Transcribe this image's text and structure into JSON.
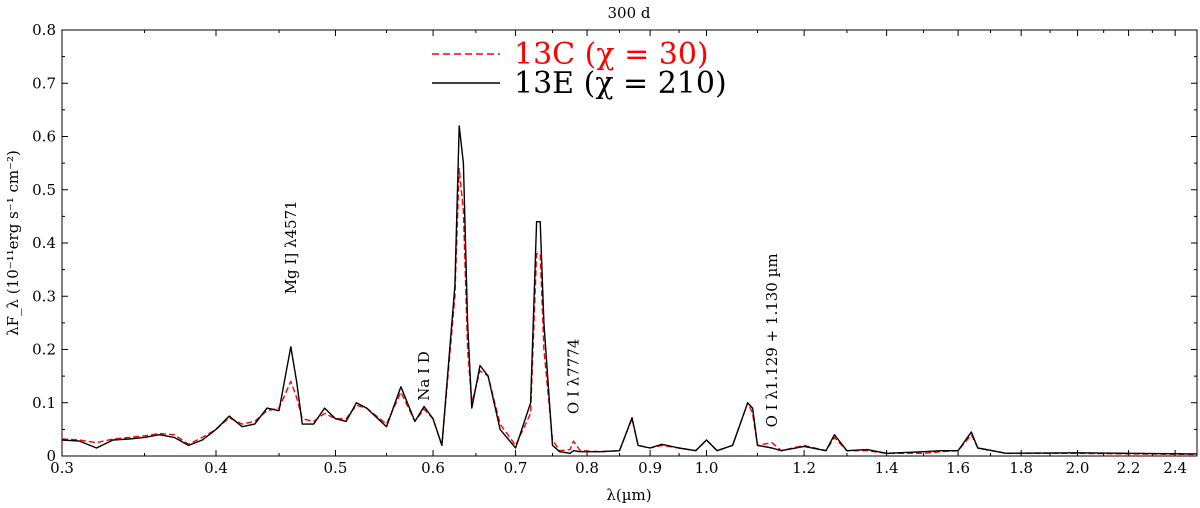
{
  "chart_data": {
    "type": "line",
    "title": "300 d",
    "xlabel": "λ(µm)",
    "ylabel": "λF_λ (10⁻¹¹erg s⁻¹ cm⁻²)",
    "x_scale": "log",
    "xlim": [
      0.3,
      2.5
    ],
    "ylim": [
      0,
      0.8
    ],
    "x_ticks": [
      "0.3",
      "0.4",
      "0.5",
      "0.6",
      "0.7",
      "0.8",
      "0.9",
      "1.0",
      "1.2",
      "1.4",
      "1.6",
      "1.8",
      "2.0",
      "2.2",
      "2.4"
    ],
    "y_ticks": [
      "0",
      "0.1",
      "0.2",
      "0.3",
      "0.4",
      "0.5",
      "0.6",
      "0.7",
      "0.8"
    ],
    "grid": false,
    "legend_placement": "top-center",
    "series": [
      {
        "name": "13C (χ = 30)",
        "color": "#ff0000",
        "style": "dashed",
        "points": [
          [
            0.3,
            0.032
          ],
          [
            0.31,
            0.03
          ],
          [
            0.32,
            0.025
          ],
          [
            0.33,
            0.032
          ],
          [
            0.34,
            0.035
          ],
          [
            0.35,
            0.038
          ],
          [
            0.36,
            0.042
          ],
          [
            0.37,
            0.04
          ],
          [
            0.38,
            0.022
          ],
          [
            0.39,
            0.035
          ],
          [
            0.4,
            0.05
          ],
          [
            0.41,
            0.072
          ],
          [
            0.42,
            0.06
          ],
          [
            0.43,
            0.065
          ],
          [
            0.44,
            0.085
          ],
          [
            0.45,
            0.09
          ],
          [
            0.46,
            0.14
          ],
          [
            0.465,
            0.11
          ],
          [
            0.47,
            0.07
          ],
          [
            0.48,
            0.065
          ],
          [
            0.49,
            0.08
          ],
          [
            0.5,
            0.07
          ],
          [
            0.51,
            0.07
          ],
          [
            0.52,
            0.095
          ],
          [
            0.53,
            0.09
          ],
          [
            0.55,
            0.06
          ],
          [
            0.565,
            0.12
          ],
          [
            0.58,
            0.065
          ],
          [
            0.59,
            0.088
          ],
          [
            0.6,
            0.07
          ],
          [
            0.61,
            0.02
          ],
          [
            0.625,
            0.3
          ],
          [
            0.63,
            0.54
          ],
          [
            0.635,
            0.46
          ],
          [
            0.64,
            0.2
          ],
          [
            0.645,
            0.1
          ],
          [
            0.655,
            0.16
          ],
          [
            0.665,
            0.15
          ],
          [
            0.68,
            0.06
          ],
          [
            0.7,
            0.02
          ],
          [
            0.72,
            0.08
          ],
          [
            0.728,
            0.38
          ],
          [
            0.733,
            0.38
          ],
          [
            0.738,
            0.2
          ],
          [
            0.75,
            0.03
          ],
          [
            0.76,
            0.01
          ],
          [
            0.775,
            0.012
          ],
          [
            0.78,
            0.028
          ],
          [
            0.79,
            0.01
          ],
          [
            0.82,
            0.008
          ],
          [
            0.85,
            0.01
          ],
          [
            0.87,
            0.07
          ],
          [
            0.88,
            0.02
          ],
          [
            0.9,
            0.015
          ],
          [
            0.92,
            0.02
          ],
          [
            0.95,
            0.015
          ],
          [
            0.98,
            0.01
          ],
          [
            1.0,
            0.03
          ],
          [
            1.02,
            0.01
          ],
          [
            1.05,
            0.02
          ],
          [
            1.08,
            0.1
          ],
          [
            1.09,
            0.08
          ],
          [
            1.1,
            0.02
          ],
          [
            1.13,
            0.025
          ],
          [
            1.15,
            0.01
          ],
          [
            1.2,
            0.02
          ],
          [
            1.25,
            0.01
          ],
          [
            1.27,
            0.035
          ],
          [
            1.3,
            0.01
          ],
          [
            1.35,
            0.01
          ],
          [
            1.4,
            0.005
          ],
          [
            1.5,
            0.005
          ],
          [
            1.55,
            0.008
          ],
          [
            1.6,
            0.01
          ],
          [
            1.64,
            0.04
          ],
          [
            1.66,
            0.015
          ],
          [
            1.75,
            0.005
          ],
          [
            2.0,
            0.005
          ],
          [
            2.2,
            0.004
          ],
          [
            2.5,
            0.003
          ]
        ]
      },
      {
        "name": "13E (χ = 210)",
        "color": "#000000",
        "style": "solid",
        "points": [
          [
            0.3,
            0.03
          ],
          [
            0.31,
            0.028
          ],
          [
            0.32,
            0.015
          ],
          [
            0.33,
            0.03
          ],
          [
            0.34,
            0.032
          ],
          [
            0.35,
            0.035
          ],
          [
            0.36,
            0.04
          ],
          [
            0.37,
            0.035
          ],
          [
            0.38,
            0.02
          ],
          [
            0.39,
            0.03
          ],
          [
            0.4,
            0.05
          ],
          [
            0.41,
            0.075
          ],
          [
            0.42,
            0.055
          ],
          [
            0.43,
            0.06
          ],
          [
            0.44,
            0.09
          ],
          [
            0.45,
            0.085
          ],
          [
            0.46,
            0.205
          ],
          [
            0.465,
            0.14
          ],
          [
            0.47,
            0.06
          ],
          [
            0.48,
            0.06
          ],
          [
            0.49,
            0.09
          ],
          [
            0.5,
            0.07
          ],
          [
            0.51,
            0.065
          ],
          [
            0.52,
            0.1
          ],
          [
            0.53,
            0.09
          ],
          [
            0.55,
            0.055
          ],
          [
            0.565,
            0.13
          ],
          [
            0.58,
            0.065
          ],
          [
            0.59,
            0.093
          ],
          [
            0.6,
            0.07
          ],
          [
            0.61,
            0.02
          ],
          [
            0.625,
            0.32
          ],
          [
            0.63,
            0.62
          ],
          [
            0.635,
            0.55
          ],
          [
            0.64,
            0.25
          ],
          [
            0.645,
            0.09
          ],
          [
            0.655,
            0.17
          ],
          [
            0.665,
            0.15
          ],
          [
            0.68,
            0.05
          ],
          [
            0.7,
            0.015
          ],
          [
            0.72,
            0.1
          ],
          [
            0.728,
            0.44
          ],
          [
            0.733,
            0.44
          ],
          [
            0.738,
            0.25
          ],
          [
            0.75,
            0.02
          ],
          [
            0.76,
            0.008
          ],
          [
            0.775,
            0.005
          ],
          [
            0.78,
            0.01
          ],
          [
            0.79,
            0.008
          ],
          [
            0.82,
            0.008
          ],
          [
            0.85,
            0.01
          ],
          [
            0.87,
            0.072
          ],
          [
            0.88,
            0.02
          ],
          [
            0.9,
            0.015
          ],
          [
            0.92,
            0.022
          ],
          [
            0.95,
            0.015
          ],
          [
            0.98,
            0.01
          ],
          [
            1.0,
            0.03
          ],
          [
            1.02,
            0.01
          ],
          [
            1.05,
            0.02
          ],
          [
            1.08,
            0.1
          ],
          [
            1.09,
            0.09
          ],
          [
            1.1,
            0.02
          ],
          [
            1.13,
            0.015
          ],
          [
            1.15,
            0.01
          ],
          [
            1.2,
            0.018
          ],
          [
            1.25,
            0.01
          ],
          [
            1.27,
            0.04
          ],
          [
            1.3,
            0.01
          ],
          [
            1.35,
            0.012
          ],
          [
            1.4,
            0.005
          ],
          [
            1.5,
            0.008
          ],
          [
            1.55,
            0.01
          ],
          [
            1.6,
            0.01
          ],
          [
            1.64,
            0.045
          ],
          [
            1.66,
            0.015
          ],
          [
            1.75,
            0.005
          ],
          [
            2.0,
            0.006
          ],
          [
            2.2,
            0.005
          ],
          [
            2.5,
            0.004
          ]
        ]
      }
    ],
    "annotations": [
      {
        "text": "Mg I] λ4571",
        "x": 0.46,
        "y": 0.3
      },
      {
        "text": "Na I D",
        "x": 0.59,
        "y": 0.1
      },
      {
        "text": "O I λ7774",
        "x": 0.78,
        "y": 0.075
      },
      {
        "text": "O I λ1.129 + 1.130 µm",
        "x": 1.13,
        "y": 0.05
      }
    ]
  }
}
